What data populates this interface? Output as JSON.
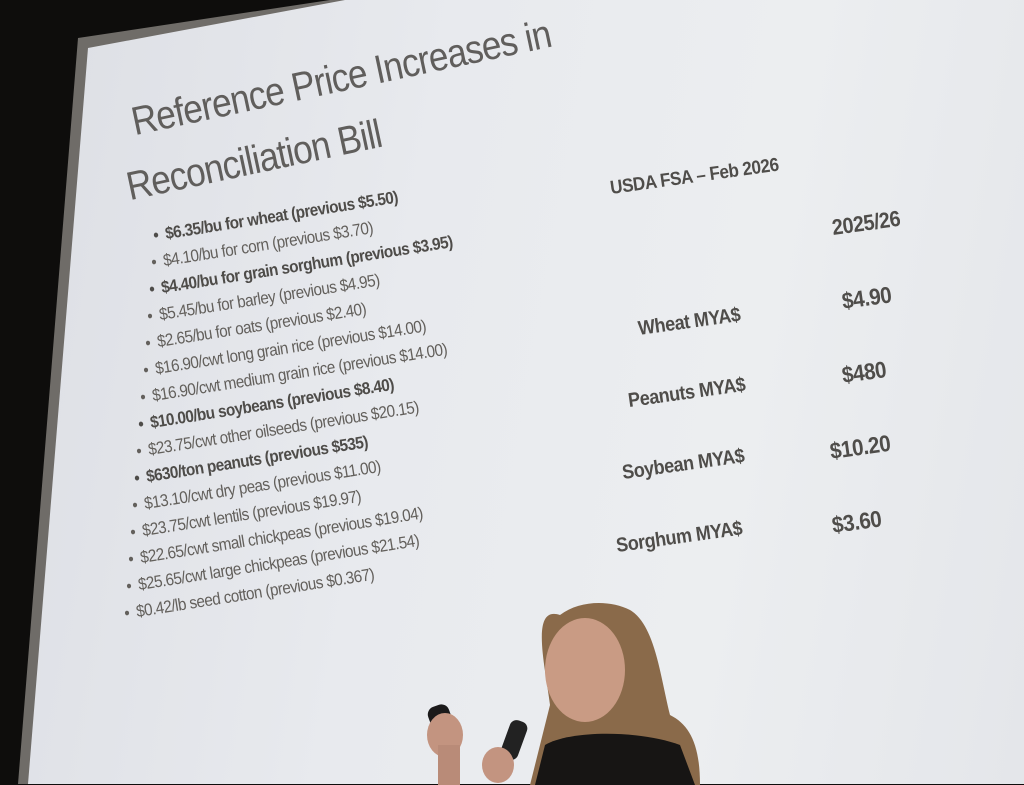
{
  "slide": {
    "title_line1": "Reference Price Increases in",
    "title_line2": "Reconciliation Bill",
    "bullets": [
      {
        "text": "$6.35/bu for wheat (previous $5.50)",
        "bold": true
      },
      {
        "text": "$4.10/bu for corn (previous $3.70)",
        "bold": false
      },
      {
        "text": "$4.40/bu for grain sorghum (previous $3.95)",
        "bold": true
      },
      {
        "text": "$5.45/bu for barley (previous $4.95)",
        "bold": false
      },
      {
        "text": "$2.65/bu for oats (previous $2.40)",
        "bold": false
      },
      {
        "text": "$16.90/cwt long grain rice (previous $14.00)",
        "bold": false
      },
      {
        "text": "$16.90/cwt medium grain rice (previous $14.00)",
        "bold": false
      },
      {
        "text": "$10.00/bu soybeans (previous $8.40)",
        "bold": true
      },
      {
        "text": "$23.75/cwt other oilseeds (previous $20.15)",
        "bold": false
      },
      {
        "text": "$630/ton peanuts (previous $535)",
        "bold": true
      },
      {
        "text": "$13.10/cwt dry peas (previous $11.00)",
        "bold": false
      },
      {
        "text": "$23.75/cwt lentils (previous $19.97)",
        "bold": false
      },
      {
        "text": "$22.65/cwt small chickpeas (previous $19.04)",
        "bold": false
      },
      {
        "text": "$25.65/cwt large chickpeas (previous $21.54)",
        "bold": false
      },
      {
        "text": "$0.42/lb seed cotton (previous $0.367)",
        "bold": false
      }
    ],
    "table": {
      "source": "USDA FSA – Feb 2026",
      "column_header": "2025/26",
      "rows": [
        {
          "label": "Wheat MYA$",
          "value": "$4.90"
        },
        {
          "label": "Peanuts MYA$",
          "value": "$480"
        },
        {
          "label": "Soybean MYA$",
          "value": "$10.20"
        },
        {
          "label": "Sorghum MYA$",
          "value": "$3.60"
        }
      ]
    }
  }
}
